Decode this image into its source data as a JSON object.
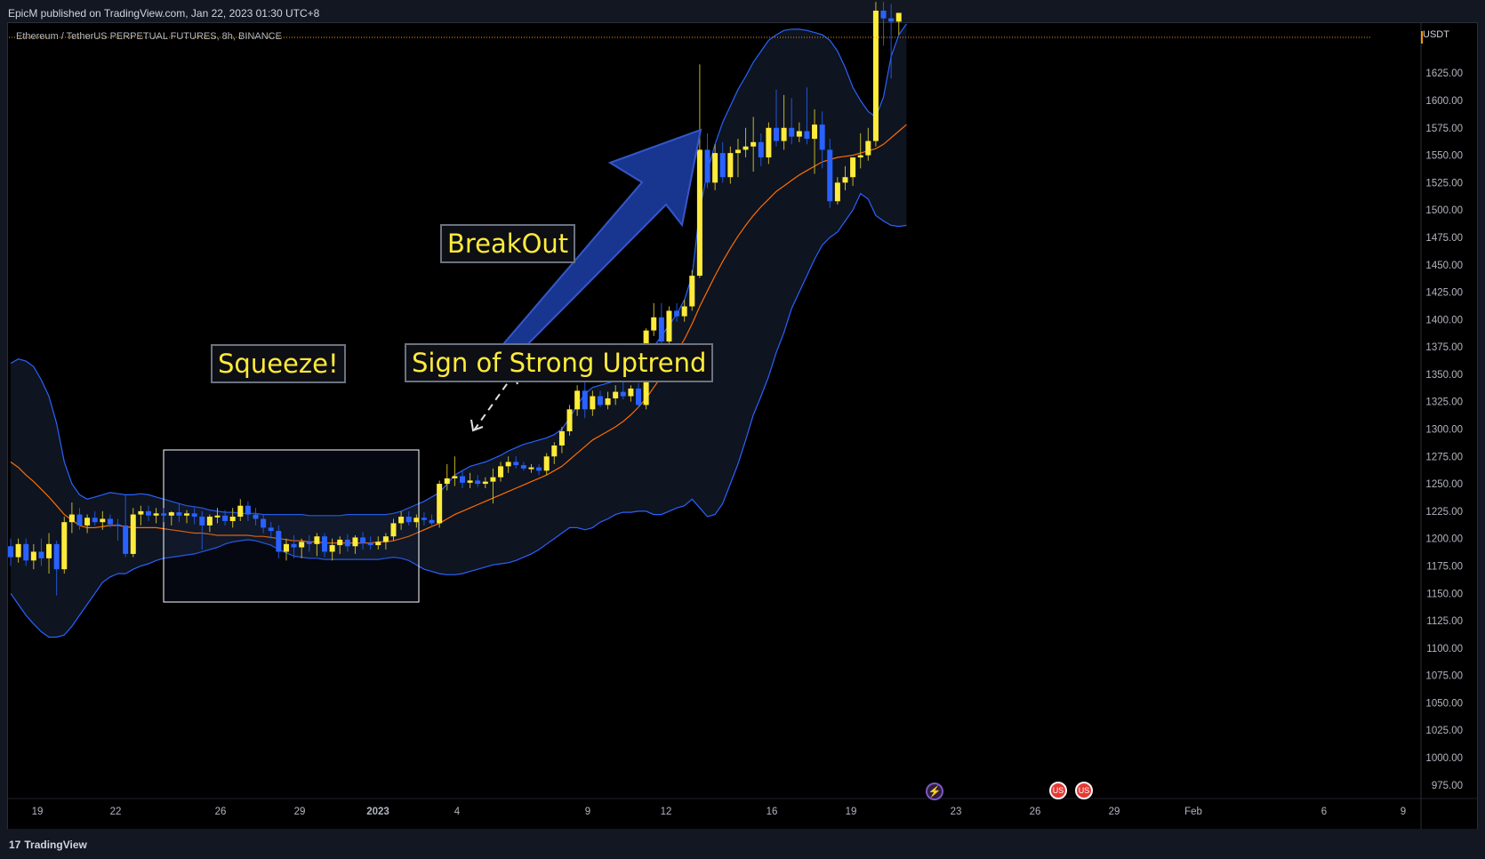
{
  "header": {
    "published": "EpicM published on TradingView.com, Jan 22, 2023 01:30 UTC+8"
  },
  "symbol_line": "Ethereum / TetherUS PERPETUAL FUTURES, 8h, BINANCE",
  "currency": "USDT",
  "footer": {
    "brand": "TradingView",
    "logo_glyph": "17"
  },
  "annotations": {
    "squeeze": "Squeeze!",
    "breakout": "BreakOut",
    "uptrend": "Sign of Strong Uptrend"
  },
  "events": {
    "lightning": "⚡",
    "flag": "US"
  },
  "colors": {
    "bull": "#ffeb3b",
    "bear": "#2962ff",
    "basis": "#ff6d00",
    "band": "#2962ff",
    "arrow": "#1a3a9c",
    "squeeze_box": "#ffffff",
    "last_price_line": "#ff9800"
  },
  "chart_data": {
    "type": "candlestick",
    "title": "Ethereum / TetherUS PERPETUAL FUTURES, 8h, BINANCE",
    "interval": "8h",
    "y_axis": {
      "unit": "USDT",
      "ylim": [
        950,
        1690
      ],
      "ticks": [
        "1625.00",
        "1600.00",
        "1575.00",
        "1550.00",
        "1525.00",
        "1500.00",
        "1475.00",
        "1450.00",
        "1425.00",
        "1400.00",
        "1375.00",
        "1350.00",
        "1325.00",
        "1300.00",
        "1275.00",
        "1250.00",
        "1225.00",
        "1200.00",
        "1175.00",
        "1150.00",
        "1125.00",
        "1100.00",
        "1075.00",
        "1050.00",
        "1025.00",
        "1000.00",
        "975.00"
      ]
    },
    "x_axis": {
      "ticks": [
        "19",
        "22",
        "26",
        "29",
        "2023",
        "4",
        "9",
        "12",
        "16",
        "19",
        "23",
        "26",
        "29",
        "Feb",
        "6",
        "9"
      ]
    },
    "indicator": "Bollinger Bands (20, 2)",
    "candles": [
      {
        "o": 1193,
        "h": 1200,
        "l": 1175,
        "c": 1183
      },
      {
        "o": 1183,
        "h": 1200,
        "l": 1178,
        "c": 1195
      },
      {
        "o": 1195,
        "h": 1200,
        "l": 1175,
        "c": 1180
      },
      {
        "o": 1180,
        "h": 1195,
        "l": 1172,
        "c": 1188
      },
      {
        "o": 1188,
        "h": 1200,
        "l": 1175,
        "c": 1182
      },
      {
        "o": 1182,
        "h": 1205,
        "l": 1168,
        "c": 1195
      },
      {
        "o": 1195,
        "h": 1198,
        "l": 1148,
        "c": 1172
      },
      {
        "o": 1172,
        "h": 1220,
        "l": 1168,
        "c": 1215
      },
      {
        "o": 1215,
        "h": 1233,
        "l": 1205,
        "c": 1222
      },
      {
        "o": 1222,
        "h": 1228,
        "l": 1208,
        "c": 1212
      },
      {
        "o": 1212,
        "h": 1222,
        "l": 1205,
        "c": 1219
      },
      {
        "o": 1219,
        "h": 1225,
        "l": 1212,
        "c": 1215
      },
      {
        "o": 1215,
        "h": 1225,
        "l": 1208,
        "c": 1218
      },
      {
        "o": 1218,
        "h": 1222,
        "l": 1210,
        "c": 1213
      },
      {
        "o": 1213,
        "h": 1218,
        "l": 1198,
        "c": 1212
      },
      {
        "o": 1212,
        "h": 1240,
        "l": 1183,
        "c": 1186
      },
      {
        "o": 1186,
        "h": 1228,
        "l": 1183,
        "c": 1222
      },
      {
        "o": 1222,
        "h": 1230,
        "l": 1212,
        "c": 1225
      },
      {
        "o": 1225,
        "h": 1230,
        "l": 1216,
        "c": 1221
      },
      {
        "o": 1221,
        "h": 1228,
        "l": 1214,
        "c": 1223
      },
      {
        "o": 1223,
        "h": 1228,
        "l": 1215,
        "c": 1221
      },
      {
        "o": 1221,
        "h": 1225,
        "l": 1212,
        "c": 1224
      },
      {
        "o": 1224,
        "h": 1232,
        "l": 1215,
        "c": 1221
      },
      {
        "o": 1221,
        "h": 1226,
        "l": 1214,
        "c": 1223
      },
      {
        "o": 1223,
        "h": 1228,
        "l": 1213,
        "c": 1220
      },
      {
        "o": 1220,
        "h": 1225,
        "l": 1190,
        "c": 1212
      },
      {
        "o": 1212,
        "h": 1222,
        "l": 1206,
        "c": 1220
      },
      {
        "o": 1220,
        "h": 1228,
        "l": 1214,
        "c": 1221
      },
      {
        "o": 1221,
        "h": 1226,
        "l": 1212,
        "c": 1216
      },
      {
        "o": 1216,
        "h": 1228,
        "l": 1210,
        "c": 1220
      },
      {
        "o": 1220,
        "h": 1236,
        "l": 1216,
        "c": 1230
      },
      {
        "o": 1230,
        "h": 1234,
        "l": 1216,
        "c": 1222
      },
      {
        "o": 1222,
        "h": 1228,
        "l": 1212,
        "c": 1218
      },
      {
        "o": 1218,
        "h": 1222,
        "l": 1205,
        "c": 1210
      },
      {
        "o": 1210,
        "h": 1215,
        "l": 1200,
        "c": 1207
      },
      {
        "o": 1207,
        "h": 1212,
        "l": 1182,
        "c": 1188
      },
      {
        "o": 1188,
        "h": 1200,
        "l": 1180,
        "c": 1195
      },
      {
        "o": 1195,
        "h": 1203,
        "l": 1182,
        "c": 1192
      },
      {
        "o": 1192,
        "h": 1200,
        "l": 1182,
        "c": 1197
      },
      {
        "o": 1197,
        "h": 1203,
        "l": 1188,
        "c": 1195
      },
      {
        "o": 1195,
        "h": 1205,
        "l": 1184,
        "c": 1202
      },
      {
        "o": 1202,
        "h": 1205,
        "l": 1183,
        "c": 1188
      },
      {
        "o": 1188,
        "h": 1200,
        "l": 1180,
        "c": 1194
      },
      {
        "o": 1194,
        "h": 1202,
        "l": 1186,
        "c": 1199
      },
      {
        "o": 1199,
        "h": 1204,
        "l": 1188,
        "c": 1193
      },
      {
        "o": 1193,
        "h": 1203,
        "l": 1186,
        "c": 1201
      },
      {
        "o": 1201,
        "h": 1206,
        "l": 1190,
        "c": 1196
      },
      {
        "o": 1196,
        "h": 1202,
        "l": 1190,
        "c": 1194
      },
      {
        "o": 1194,
        "h": 1202,
        "l": 1190,
        "c": 1197
      },
      {
        "o": 1197,
        "h": 1205,
        "l": 1190,
        "c": 1202
      },
      {
        "o": 1202,
        "h": 1218,
        "l": 1198,
        "c": 1214
      },
      {
        "o": 1214,
        "h": 1225,
        "l": 1208,
        "c": 1220
      },
      {
        "o": 1220,
        "h": 1225,
        "l": 1212,
        "c": 1215
      },
      {
        "o": 1215,
        "h": 1222,
        "l": 1210,
        "c": 1219
      },
      {
        "o": 1219,
        "h": 1224,
        "l": 1212,
        "c": 1217
      },
      {
        "o": 1217,
        "h": 1222,
        "l": 1210,
        "c": 1214
      },
      {
        "o": 1214,
        "h": 1253,
        "l": 1210,
        "c": 1250
      },
      {
        "o": 1250,
        "h": 1268,
        "l": 1244,
        "c": 1255
      },
      {
        "o": 1255,
        "h": 1275,
        "l": 1248,
        "c": 1257
      },
      {
        "o": 1257,
        "h": 1262,
        "l": 1246,
        "c": 1251
      },
      {
        "o": 1251,
        "h": 1260,
        "l": 1246,
        "c": 1253
      },
      {
        "o": 1253,
        "h": 1258,
        "l": 1247,
        "c": 1250
      },
      {
        "o": 1250,
        "h": 1256,
        "l": 1246,
        "c": 1252
      },
      {
        "o": 1252,
        "h": 1264,
        "l": 1232,
        "c": 1256
      },
      {
        "o": 1256,
        "h": 1270,
        "l": 1252,
        "c": 1266
      },
      {
        "o": 1266,
        "h": 1275,
        "l": 1260,
        "c": 1270
      },
      {
        "o": 1270,
        "h": 1275,
        "l": 1264,
        "c": 1267
      },
      {
        "o": 1267,
        "h": 1270,
        "l": 1262,
        "c": 1264
      },
      {
        "o": 1264,
        "h": 1268,
        "l": 1260,
        "c": 1265
      },
      {
        "o": 1265,
        "h": 1268,
        "l": 1258,
        "c": 1262
      },
      {
        "o": 1262,
        "h": 1278,
        "l": 1258,
        "c": 1275
      },
      {
        "o": 1275,
        "h": 1288,
        "l": 1268,
        "c": 1285
      },
      {
        "o": 1285,
        "h": 1302,
        "l": 1278,
        "c": 1298
      },
      {
        "o": 1298,
        "h": 1322,
        "l": 1294,
        "c": 1318
      },
      {
        "o": 1318,
        "h": 1340,
        "l": 1312,
        "c": 1335
      },
      {
        "o": 1335,
        "h": 1345,
        "l": 1310,
        "c": 1318
      },
      {
        "o": 1318,
        "h": 1335,
        "l": 1312,
        "c": 1330
      },
      {
        "o": 1330,
        "h": 1335,
        "l": 1320,
        "c": 1322
      },
      {
        "o": 1322,
        "h": 1334,
        "l": 1318,
        "c": 1328
      },
      {
        "o": 1328,
        "h": 1340,
        "l": 1322,
        "c": 1334
      },
      {
        "o": 1334,
        "h": 1345,
        "l": 1327,
        "c": 1330
      },
      {
        "o": 1330,
        "h": 1340,
        "l": 1325,
        "c": 1337
      },
      {
        "o": 1337,
        "h": 1342,
        "l": 1320,
        "c": 1322
      },
      {
        "o": 1322,
        "h": 1392,
        "l": 1318,
        "c": 1390
      },
      {
        "o": 1390,
        "h": 1415,
        "l": 1385,
        "c": 1402
      },
      {
        "o": 1402,
        "h": 1415,
        "l": 1372,
        "c": 1380
      },
      {
        "o": 1380,
        "h": 1412,
        "l": 1376,
        "c": 1408
      },
      {
        "o": 1408,
        "h": 1415,
        "l": 1398,
        "c": 1403
      },
      {
        "o": 1403,
        "h": 1418,
        "l": 1398,
        "c": 1412
      },
      {
        "o": 1412,
        "h": 1445,
        "l": 1408,
        "c": 1440
      },
      {
        "o": 1440,
        "h": 1633,
        "l": 1438,
        "c": 1555
      },
      {
        "o": 1555,
        "h": 1570,
        "l": 1520,
        "c": 1525
      },
      {
        "o": 1525,
        "h": 1560,
        "l": 1518,
        "c": 1552
      },
      {
        "o": 1552,
        "h": 1562,
        "l": 1525,
        "c": 1530
      },
      {
        "o": 1530,
        "h": 1558,
        "l": 1524,
        "c": 1552
      },
      {
        "o": 1552,
        "h": 1565,
        "l": 1530,
        "c": 1555
      },
      {
        "o": 1555,
        "h": 1575,
        "l": 1548,
        "c": 1558
      },
      {
        "o": 1558,
        "h": 1585,
        "l": 1535,
        "c": 1562
      },
      {
        "o": 1562,
        "h": 1570,
        "l": 1540,
        "c": 1548
      },
      {
        "o": 1548,
        "h": 1580,
        "l": 1542,
        "c": 1575
      },
      {
        "o": 1575,
        "h": 1610,
        "l": 1558,
        "c": 1563
      },
      {
        "o": 1563,
        "h": 1605,
        "l": 1555,
        "c": 1575
      },
      {
        "o": 1575,
        "h": 1602,
        "l": 1560,
        "c": 1567
      },
      {
        "o": 1567,
        "h": 1580,
        "l": 1562,
        "c": 1572
      },
      {
        "o": 1572,
        "h": 1612,
        "l": 1560,
        "c": 1565
      },
      {
        "o": 1565,
        "h": 1592,
        "l": 1533,
        "c": 1578
      },
      {
        "o": 1578,
        "h": 1590,
        "l": 1538,
        "c": 1555
      },
      {
        "o": 1555,
        "h": 1565,
        "l": 1502,
        "c": 1508
      },
      {
        "o": 1508,
        "h": 1530,
        "l": 1505,
        "c": 1525
      },
      {
        "o": 1525,
        "h": 1540,
        "l": 1518,
        "c": 1530
      },
      {
        "o": 1530,
        "h": 1545,
        "l": 1522,
        "c": 1548
      },
      {
        "o": 1548,
        "h": 1570,
        "l": 1538,
        "c": 1550
      },
      {
        "o": 1550,
        "h": 1575,
        "l": 1545,
        "c": 1563
      },
      {
        "o": 1563,
        "h": 1690,
        "l": 1558,
        "c": 1682
      },
      {
        "o": 1682,
        "h": 1690,
        "l": 1650,
        "c": 1675
      },
      {
        "o": 1675,
        "h": 1688,
        "l": 1620,
        "c": 1672
      },
      {
        "o": 1672,
        "h": 1680,
        "l": 1660,
        "c": 1680
      }
    ],
    "bands": {
      "upper": [
        1360,
        1364,
        1362,
        1357,
        1345,
        1330,
        1305,
        1270,
        1250,
        1240,
        1236,
        1238,
        1240,
        1242,
        1241,
        1240,
        1240,
        1241,
        1240,
        1238,
        1236,
        1234,
        1232,
        1230,
        1229,
        1228,
        1226,
        1225,
        1224,
        1224,
        1223,
        1223,
        1223,
        1222,
        1222,
        1222,
        1222,
        1222,
        1222,
        1221,
        1221,
        1221,
        1221,
        1221,
        1222,
        1222,
        1222,
        1222,
        1222,
        1222,
        1223,
        1225,
        1228,
        1231,
        1234,
        1238,
        1242,
        1250,
        1258,
        1262,
        1266,
        1268,
        1270,
        1273,
        1276,
        1280,
        1283,
        1286,
        1288,
        1290,
        1292,
        1295,
        1300,
        1310,
        1322,
        1332,
        1338,
        1340,
        1342,
        1344,
        1346,
        1350,
        1355,
        1364,
        1375,
        1385,
        1395,
        1405,
        1418,
        1440,
        1500,
        1535,
        1560,
        1580,
        1595,
        1610,
        1622,
        1635,
        1645,
        1655,
        1660,
        1664,
        1665,
        1665,
        1664,
        1662,
        1660,
        1655,
        1645,
        1630,
        1612,
        1600,
        1590,
        1585,
        1603,
        1640,
        1660,
        1670
      ],
      "basis": [
        1270,
        1265,
        1258,
        1252,
        1245,
        1238,
        1230,
        1222,
        1217,
        1212,
        1210,
        1210,
        1211,
        1212,
        1212,
        1211,
        1210,
        1210,
        1210,
        1210,
        1209,
        1208,
        1207,
        1206,
        1205,
        1205,
        1204,
        1203,
        1203,
        1203,
        1203,
        1203,
        1202,
        1202,
        1201,
        1200,
        1199,
        1198,
        1198,
        1197,
        1197,
        1196,
        1196,
        1196,
        1196,
        1196,
        1196,
        1196,
        1197,
        1197,
        1198,
        1200,
        1202,
        1205,
        1208,
        1211,
        1214,
        1218,
        1222,
        1225,
        1228,
        1231,
        1234,
        1237,
        1240,
        1243,
        1246,
        1249,
        1252,
        1255,
        1258,
        1262,
        1266,
        1272,
        1278,
        1284,
        1290,
        1294,
        1298,
        1302,
        1307,
        1313,
        1320,
        1328,
        1338,
        1348,
        1358,
        1370,
        1382,
        1396,
        1412,
        1426,
        1440,
        1453,
        1465,
        1476,
        1486,
        1495,
        1503,
        1510,
        1517,
        1522,
        1527,
        1532,
        1536,
        1540,
        1544,
        1546,
        1548,
        1549,
        1550,
        1552,
        1554,
        1556,
        1560,
        1566,
        1572,
        1578
      ],
      "lower": [
        1150,
        1140,
        1130,
        1122,
        1115,
        1110,
        1110,
        1112,
        1120,
        1130,
        1140,
        1150,
        1160,
        1165,
        1168,
        1168,
        1172,
        1175,
        1177,
        1180,
        1182,
        1183,
        1184,
        1185,
        1186,
        1188,
        1190,
        1192,
        1195,
        1197,
        1198,
        1199,
        1198,
        1196,
        1194,
        1190,
        1187,
        1184,
        1183,
        1182,
        1182,
        1181,
        1181,
        1181,
        1181,
        1181,
        1181,
        1181,
        1181,
        1182,
        1183,
        1182,
        1180,
        1176,
        1172,
        1170,
        1168,
        1167,
        1167,
        1168,
        1170,
        1172,
        1174,
        1176,
        1177,
        1178,
        1180,
        1183,
        1186,
        1190,
        1195,
        1200,
        1205,
        1210,
        1210,
        1208,
        1210,
        1215,
        1218,
        1222,
        1224,
        1224,
        1225,
        1225,
        1222,
        1222,
        1225,
        1228,
        1230,
        1236,
        1228,
        1220,
        1222,
        1232,
        1250,
        1268,
        1290,
        1313,
        1330,
        1348,
        1370,
        1388,
        1410,
        1425,
        1440,
        1455,
        1468,
        1475,
        1480,
        1490,
        1500,
        1515,
        1510,
        1495,
        1490,
        1486,
        1485,
        1486
      ]
    }
  }
}
